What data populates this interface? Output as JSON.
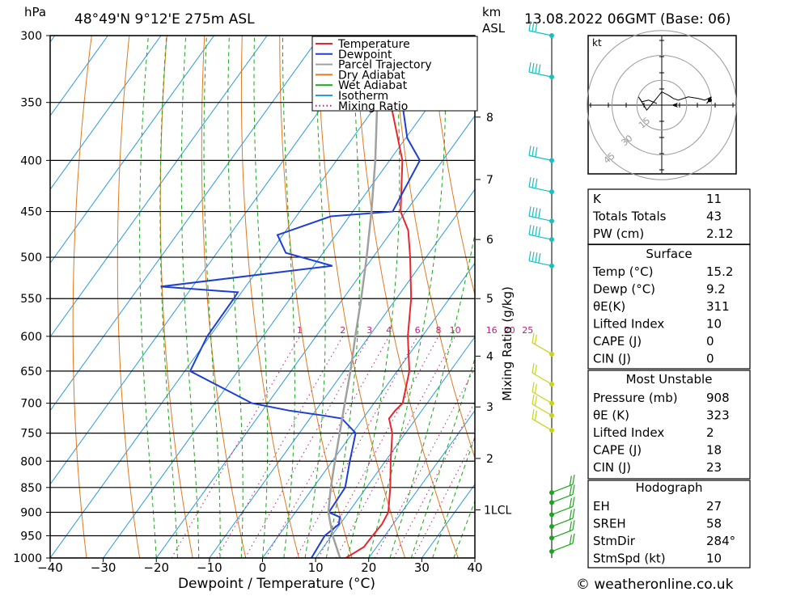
{
  "header": {
    "units_left": "hPa",
    "location": "48°49'N  9°12'E  275m  ASL",
    "units_km": "km",
    "units_asl": "ASL",
    "datetime": "13.08.2022  06GMT  (Base: 06)"
  },
  "footer": {
    "credit": "© weatheronline.co.uk"
  },
  "colors": {
    "temperature": "#e8262e",
    "dewpoint": "#1d3fd6",
    "parcel": "#a0a0a0",
    "dry_adiabat": "#e07a1e",
    "wet_adiabat": "#1aa61a",
    "isotherm": "#2b9be0",
    "mixing_ratio": "#c0207a",
    "wind_upper": "#17bfbf",
    "wind_mid": "#1aa61a",
    "wind_low": "#c8d41a"
  },
  "chart_data": {
    "type": "line",
    "subtype": "skew-T log-P",
    "xlabel": "Dewpoint / Temperature (°C)",
    "ylabel_left": "hPa",
    "ylabel_right": "Mixing Ratio (g/kg)",
    "x_ticks": [
      -40,
      -30,
      -20,
      -10,
      0,
      10,
      20,
      30,
      40
    ],
    "pressure_levels": [
      300,
      350,
      400,
      450,
      500,
      550,
      600,
      650,
      700,
      750,
      800,
      850,
      900,
      950,
      1000
    ],
    "height_km_ticks": [
      {
        "label": "8",
        "p": 362
      },
      {
        "label": "7",
        "p": 418
      },
      {
        "label": "6",
        "p": 480
      },
      {
        "label": "5",
        "p": 550
      },
      {
        "label": "4",
        "p": 628
      },
      {
        "label": "3",
        "p": 706
      },
      {
        "label": "2",
        "p": 795
      },
      {
        "label": "1LCL",
        "p": 895
      }
    ],
    "mixing_ratio_labels": [
      "1",
      "2",
      "3",
      "4",
      "6",
      "8",
      "10",
      "16",
      "20",
      "25"
    ],
    "mixing_ratio_values": [
      1,
      2,
      3,
      4,
      6,
      8,
      10,
      16,
      20,
      25
    ],
    "legend": [
      "Temperature",
      "Dewpoint",
      "Parcel Trajectory",
      "Dry Adiabat",
      "Wet Adiabat",
      "Isotherm",
      "Mixing Ratio"
    ],
    "legend_position": "top-right",
    "series": [
      {
        "name": "Temperature",
        "points": [
          [
            1000,
            15.7
          ],
          [
            975,
            17.6
          ],
          [
            950,
            17.7
          ],
          [
            925,
            17.9
          ],
          [
            900,
            17.5
          ],
          [
            850,
            14.5
          ],
          [
            800,
            11.0
          ],
          [
            750,
            7.5
          ],
          [
            725,
            4.9
          ],
          [
            712,
            5.0
          ],
          [
            700,
            5.4
          ],
          [
            650,
            2.3
          ],
          [
            600,
            -2.7
          ],
          [
            550,
            -7.2
          ],
          [
            500,
            -13.0
          ],
          [
            470,
            -17.0
          ],
          [
            450,
            -21.0
          ],
          [
            400,
            -27.6
          ],
          [
            350,
            -37.7
          ],
          [
            320,
            -42.5
          ],
          [
            300,
            -48.0
          ]
        ]
      },
      {
        "name": "Dewpoint",
        "points": [
          [
            1000,
            9.2
          ],
          [
            950,
            8.7
          ],
          [
            925,
            9.8
          ],
          [
            910,
            9.0
          ],
          [
            900,
            6.3
          ],
          [
            850,
            6.0
          ],
          [
            800,
            3.3
          ],
          [
            750,
            0.6
          ],
          [
            725,
            -4.0
          ],
          [
            720,
            -8.0
          ],
          [
            712,
            -15.0
          ],
          [
            700,
            -23.0
          ],
          [
            650,
            -39.0
          ],
          [
            600,
            -40.5
          ],
          [
            550,
            -40.6
          ],
          [
            542,
            -40.7
          ],
          [
            535,
            -56.0
          ],
          [
            510,
            -26.5
          ],
          [
            495,
            -37.0
          ],
          [
            475,
            -41.0
          ],
          [
            455,
            -33.5
          ],
          [
            450,
            -22.5
          ],
          [
            400,
            -24.3
          ],
          [
            380,
            -29.7
          ],
          [
            350,
            -35.5
          ],
          [
            320,
            -55.0
          ],
          [
            300,
            -55.8
          ]
        ]
      },
      {
        "name": "Parcel Trajectory",
        "points": [
          [
            1000,
            14.6
          ],
          [
            950,
            10.2
          ],
          [
            900,
            6.2
          ],
          [
            850,
            3.3
          ],
          [
            800,
            0.5
          ],
          [
            750,
            -2.4
          ],
          [
            700,
            -5.5
          ],
          [
            650,
            -8.8
          ],
          [
            600,
            -12.6
          ],
          [
            550,
            -16.6
          ],
          [
            500,
            -21.2
          ],
          [
            450,
            -26.5
          ],
          [
            400,
            -32.7
          ],
          [
            350,
            -40.2
          ],
          [
            300,
            -49.0
          ]
        ]
      }
    ]
  },
  "winds": [
    {
      "p": 300,
      "barbs": 3
    },
    {
      "p": 330,
      "barbs": 4
    },
    {
      "p": 400,
      "barbs": 3
    },
    {
      "p": 430,
      "barbs": 3
    },
    {
      "p": 460,
      "barbs": 4
    },
    {
      "p": 480,
      "barbs": 4
    },
    {
      "p": 510,
      "barbs": 4
    },
    {
      "p": 625,
      "barbs": 2
    },
    {
      "p": 670,
      "barbs": 2
    },
    {
      "p": 700,
      "barbs": 2
    },
    {
      "p": 720,
      "barbs": 2
    },
    {
      "p": 745,
      "barbs": 2
    },
    {
      "p": 860,
      "barbs": 2
    },
    {
      "p": 880,
      "barbs": 2
    },
    {
      "p": 905,
      "barbs": 2
    },
    {
      "p": 930,
      "barbs": 2
    },
    {
      "p": 955,
      "barbs": 2
    },
    {
      "p": 985,
      "barbs": 2
    }
  ],
  "hodograph": {
    "unit": "kt",
    "ring_labels": [
      "15",
      "30",
      "45"
    ],
    "ring_values": [
      15,
      30,
      45
    ],
    "trace": [
      [
        -3,
        1
      ],
      [
        -8,
        3
      ],
      [
        -12,
        2
      ],
      [
        -14,
        5
      ],
      [
        -9,
        -3
      ],
      [
        -4,
        3
      ],
      [
        0,
        8
      ],
      [
        4,
        6
      ],
      [
        7,
        4
      ],
      [
        10,
        3
      ],
      [
        16,
        5
      ],
      [
        22,
        4
      ],
      [
        26,
        3
      ],
      [
        30,
        5
      ],
      [
        27,
        1
      ],
      [
        29,
        3
      ]
    ]
  },
  "indices": {
    "top": [
      {
        "label": "K",
        "value": "11"
      },
      {
        "label": "Totals Totals",
        "value": "43"
      },
      {
        "label": "PW (cm)",
        "value": "2.12"
      }
    ],
    "surface_title": "Surface",
    "surface": [
      {
        "label": "Temp (°C)",
        "value": "15.2"
      },
      {
        "label": "Dewp (°C)",
        "value": "9.2"
      },
      {
        "label": "θE(K)",
        "value": "311"
      },
      {
        "label": "Lifted Index",
        "value": "10"
      },
      {
        "label": "CAPE (J)",
        "value": "0"
      },
      {
        "label": "CIN (J)",
        "value": "0"
      }
    ],
    "most_unstable_title": "Most Unstable",
    "most_unstable": [
      {
        "label": "Pressure (mb)",
        "value": "908"
      },
      {
        "label": "θE (K)",
        "value": "323"
      },
      {
        "label": "Lifted Index",
        "value": "2"
      },
      {
        "label": "CAPE (J)",
        "value": "18"
      },
      {
        "label": "CIN (J)",
        "value": "23"
      }
    ],
    "hodograph_title": "Hodograph",
    "hodograph": [
      {
        "label": "EH",
        "value": "27"
      },
      {
        "label": "SREH",
        "value": "58"
      },
      {
        "label": "StmDir",
        "value": "284°"
      },
      {
        "label": "StmSpd (kt)",
        "value": "10"
      }
    ]
  }
}
